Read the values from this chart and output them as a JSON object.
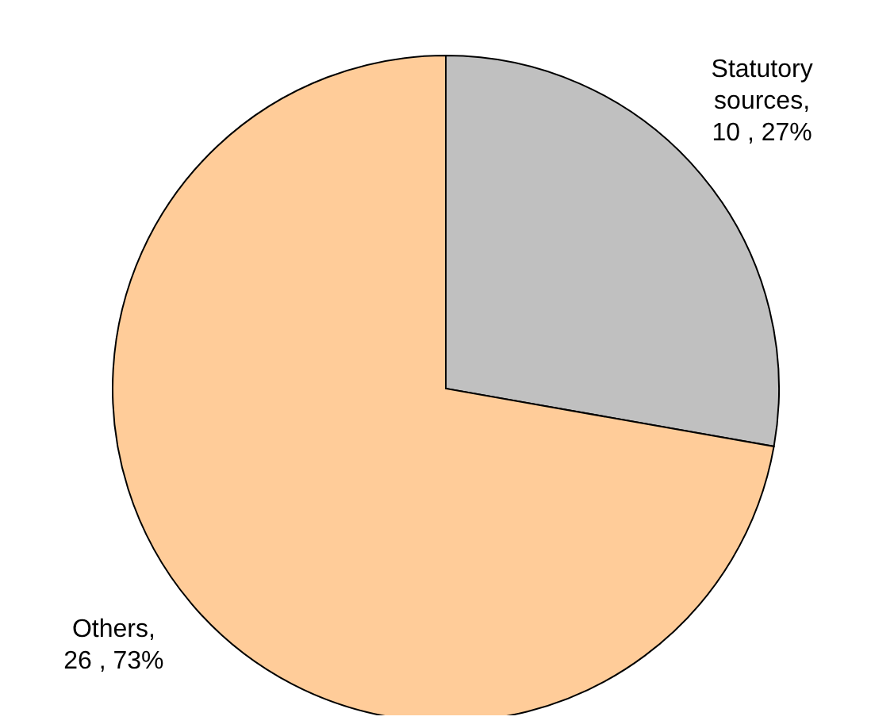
{
  "chart_data": {
    "type": "pie",
    "categories": [
      "Statutory sources",
      "Others"
    ],
    "values": [
      10,
      26
    ],
    "colors": [
      "#c0c0c0",
      "#ffcc99"
    ],
    "value_labels": [
      ", 10 , 27%",
      ", 26 , 73%"
    ],
    "legend": false
  }
}
